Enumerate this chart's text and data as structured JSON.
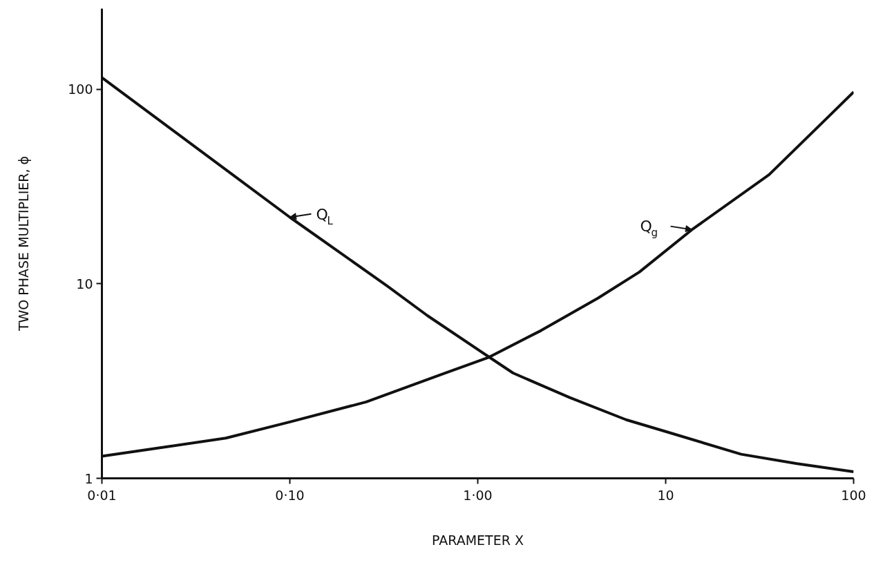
{
  "chart_data": {
    "type": "line",
    "xlabel": "PARAMETER X",
    "ylabel": "TWO PHASE MULTIPLIER, ϕ",
    "log": "xy",
    "grid": false,
    "line_style": "solid",
    "xlim": [
      0.01,
      100
    ],
    "ylim": [
      1,
      260
    ],
    "xticks": [
      {
        "value": 0.01,
        "label": "0·01"
      },
      {
        "value": 0.1,
        "label": "0·10"
      },
      {
        "value": 1,
        "label": "1·00"
      },
      10,
      100
    ],
    "yticks": [
      1,
      10,
      100
    ],
    "series": [
      {
        "name": "Q$_{L}$",
        "color": "#111111",
        "x": [
          0.01,
          0.1,
          0.33,
          0.54,
          1.15,
          1.54,
          3.09,
          6.17,
          10,
          25.2,
          50,
          100
        ],
        "values": [
          115,
          22,
          9.75,
          6.86,
          4.2,
          3.48,
          2.6,
          2.0,
          1.74,
          1.33,
          1.19,
          1.08
        ]
      },
      {
        "name": "Q$_{g}$",
        "color": "#111111",
        "x": [
          0.01,
          0.0229,
          0.0457,
          0.1,
          0.255,
          0.64,
          1.15,
          2.17,
          4.37,
          7.24,
          13.8,
          35.5,
          71.3,
          100
        ],
        "values": [
          1.3,
          1.46,
          1.61,
          1.95,
          2.47,
          3.42,
          4.2,
          5.75,
          8.45,
          11.5,
          19.0,
          36.4,
          70.3,
          97
        ]
      }
    ]
  }
}
